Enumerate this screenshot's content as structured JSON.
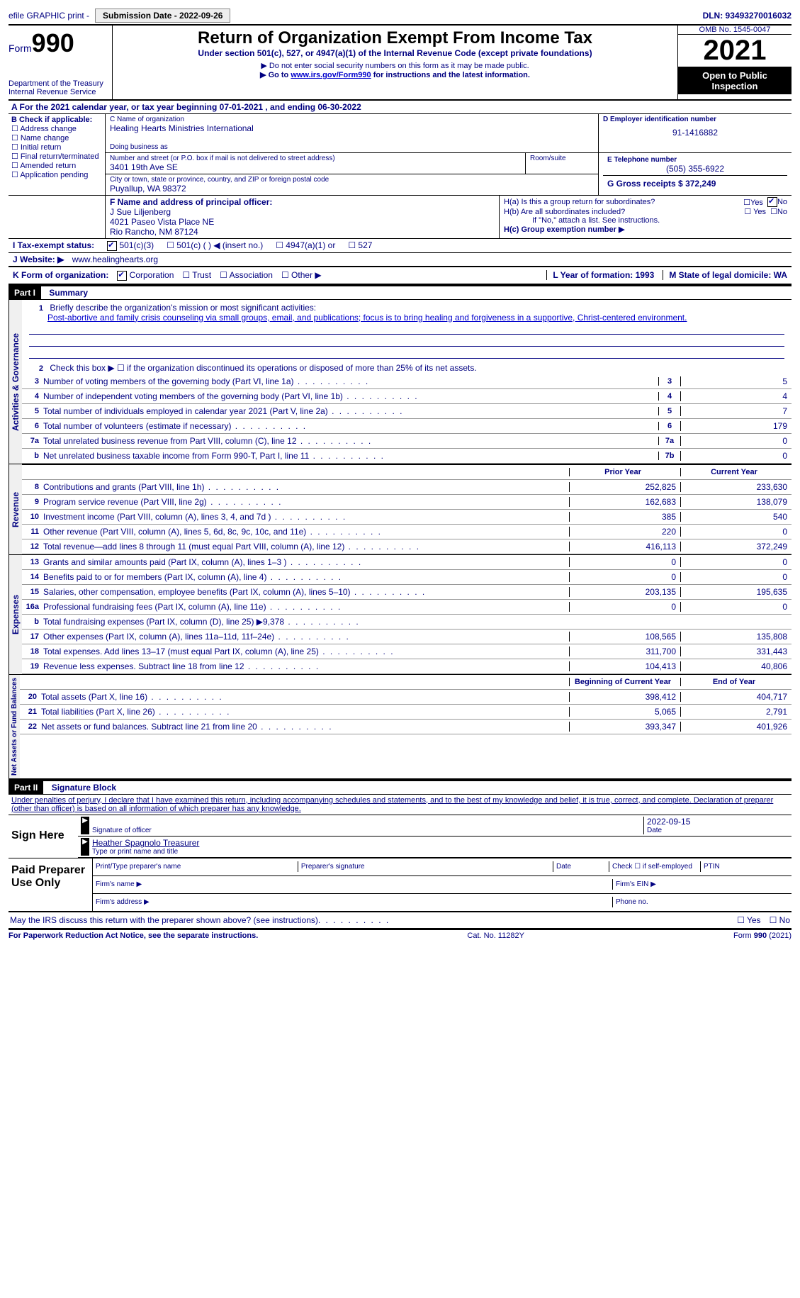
{
  "topbar": {
    "efile": "efile GRAPHIC print - ",
    "submission_label": "Submission Date - 2022-09-26",
    "dln_label": "DLN: 93493270016032"
  },
  "header": {
    "form_word": "Form",
    "form_num": "990",
    "dept": "Department of the Treasury",
    "irs": "Internal Revenue Service",
    "title": "Return of Organization Exempt From Income Tax",
    "subtitle": "Under section 501(c), 527, or 4947(a)(1) of the Internal Revenue Code (except private foundations)",
    "note1": "▶ Do not enter social security numbers on this form as it may be made public.",
    "note2_pre": "▶ Go to ",
    "note2_link": "www.irs.gov/Form990",
    "note2_post": " for instructions and the latest information.",
    "omb": "OMB No. 1545-0047",
    "year": "2021",
    "inspection": "Open to Public Inspection"
  },
  "row_a": "A For the 2021 calendar year, or tax year beginning 07-01-2021   , and ending 06-30-2022",
  "col_b": {
    "title": "B Check if applicable:",
    "opts": [
      "Address change",
      "Name change",
      "Initial return",
      "Final return/terminated",
      "Amended return",
      "Application pending"
    ]
  },
  "org": {
    "c_label": "C Name of organization",
    "name": "Healing Hearts Ministries International",
    "dba_label": "Doing business as",
    "addr_label": "Number and street (or P.O. box if mail is not delivered to street address)",
    "room_label": "Room/suite",
    "addr": "3401 19th Ave SE",
    "city_label": "City or town, state or province, country, and ZIP or foreign postal code",
    "city": "Puyallup, WA  98372",
    "d_label": "D Employer identification number",
    "ein": "91-1416882",
    "e_label": "E Telephone number",
    "phone": "(505) 355-6922",
    "g_label": "G Gross receipts $ ",
    "gross": "372,249"
  },
  "officer": {
    "f_label": "F Name and address of principal officer:",
    "name": "J Sue Liljenberg",
    "addr1": "4021 Paseo Vista Place NE",
    "addr2": "Rio Rancho, NM  87124"
  },
  "h": {
    "a": "H(a)  Is this a group return for subordinates?",
    "b": "H(b)  Are all subordinates included?",
    "note": "If \"No,\" attach a list. See instructions.",
    "c": "H(c)  Group exemption number ▶"
  },
  "status": {
    "i": "I  Tax-exempt status:",
    "o1": "501(c)(3)",
    "o2": "501(c) (  ) ◀ (insert no.)",
    "o3": "4947(a)(1) or",
    "o4": "527"
  },
  "website": {
    "j": "J  Website: ▶",
    "url": "www.healinghearts.org"
  },
  "k": {
    "label": "K Form of organization:",
    "o1": "Corporation",
    "o2": "Trust",
    "o3": "Association",
    "o4": "Other ▶",
    "l": "L Year of formation: 1993",
    "m": "M State of legal domicile: WA"
  },
  "part1": {
    "hdr": "Part I",
    "title": "Summary",
    "tab_ag": "Activities & Governance",
    "tab_rev": "Revenue",
    "tab_exp": "Expenses",
    "tab_na": "Net Assets or Fund Balances",
    "l1_lbl": "Briefly describe the organization's mission or most significant activities:",
    "l1_val": "Post-abortive and family crisis counseling via small groups, email, and publications; focus is to bring healing and forgiveness in a supportive, Christ-centered environment.",
    "l2": "Check this box ▶ ☐  if the organization discontinued its operations or disposed of more than 25% of its net assets.",
    "rows_gov": [
      {
        "n": "3",
        "d": "Number of voting members of the governing body (Part VI, line 1a)",
        "b": "3",
        "v": "5"
      },
      {
        "n": "4",
        "d": "Number of independent voting members of the governing body (Part VI, line 1b)",
        "b": "4",
        "v": "4"
      },
      {
        "n": "5",
        "d": "Total number of individuals employed in calendar year 2021 (Part V, line 2a)",
        "b": "5",
        "v": "7"
      },
      {
        "n": "6",
        "d": "Total number of volunteers (estimate if necessary)",
        "b": "6",
        "v": "179"
      },
      {
        "n": "7a",
        "d": "Total unrelated business revenue from Part VIII, column (C), line 12",
        "b": "7a",
        "v": "0"
      },
      {
        "n": "b",
        "d": "Net unrelated business taxable income from Form 990-T, Part I, line 11",
        "b": "7b",
        "v": "0"
      }
    ],
    "hdr_prior": "Prior Year",
    "hdr_curr": "Current Year",
    "rows_rev": [
      {
        "n": "8",
        "d": "Contributions and grants (Part VIII, line 1h)",
        "p": "252,825",
        "c": "233,630"
      },
      {
        "n": "9",
        "d": "Program service revenue (Part VIII, line 2g)",
        "p": "162,683",
        "c": "138,079"
      },
      {
        "n": "10",
        "d": "Investment income (Part VIII, column (A), lines 3, 4, and 7d )",
        "p": "385",
        "c": "540"
      },
      {
        "n": "11",
        "d": "Other revenue (Part VIII, column (A), lines 5, 6d, 8c, 9c, 10c, and 11e)",
        "p": "220",
        "c": "0"
      },
      {
        "n": "12",
        "d": "Total revenue—add lines 8 through 11 (must equal Part VIII, column (A), line 12)",
        "p": "416,113",
        "c": "372,249"
      }
    ],
    "rows_exp": [
      {
        "n": "13",
        "d": "Grants and similar amounts paid (Part IX, column (A), lines 1–3 )",
        "p": "0",
        "c": "0"
      },
      {
        "n": "14",
        "d": "Benefits paid to or for members (Part IX, column (A), line 4)",
        "p": "0",
        "c": "0"
      },
      {
        "n": "15",
        "d": "Salaries, other compensation, employee benefits (Part IX, column (A), lines 5–10)",
        "p": "203,135",
        "c": "195,635"
      },
      {
        "n": "16a",
        "d": "Professional fundraising fees (Part IX, column (A), line 11e)",
        "p": "0",
        "c": "0"
      },
      {
        "n": "b",
        "d": "Total fundraising expenses (Part IX, column (D), line 25) ▶9,378",
        "p": "",
        "c": "",
        "shade": true
      },
      {
        "n": "17",
        "d": "Other expenses (Part IX, column (A), lines 11a–11d, 11f–24e)",
        "p": "108,565",
        "c": "135,808"
      },
      {
        "n": "18",
        "d": "Total expenses. Add lines 13–17 (must equal Part IX, column (A), line 25)",
        "p": "311,700",
        "c": "331,443"
      },
      {
        "n": "19",
        "d": "Revenue less expenses. Subtract line 18 from line 12",
        "p": "104,413",
        "c": "40,806"
      }
    ],
    "hdr_beg": "Beginning of Current Year",
    "hdr_end": "End of Year",
    "rows_na": [
      {
        "n": "20",
        "d": "Total assets (Part X, line 16)",
        "p": "398,412",
        "c": "404,717"
      },
      {
        "n": "21",
        "d": "Total liabilities (Part X, line 26)",
        "p": "5,065",
        "c": "2,791"
      },
      {
        "n": "22",
        "d": "Net assets or fund balances. Subtract line 21 from line 20",
        "p": "393,347",
        "c": "401,926"
      }
    ]
  },
  "part2": {
    "hdr": "Part II",
    "title": "Signature Block",
    "perjury": "Under penalties of perjury, I declare that I have examined this return, including accompanying schedules and statements, and to the best of my knowledge and belief, it is true, correct, and complete. Declaration of preparer (other than officer) is based on all information of which preparer has any knowledge.",
    "sign_here": "Sign Here",
    "sig_of_officer": "Signature of officer",
    "date": "2022-09-15",
    "date_lbl": "Date",
    "typed": "Heather Spagnolo  Treasurer",
    "typed_lbl": "Type or print name and title",
    "paid": "Paid Preparer Use Only",
    "p_name": "Print/Type preparer's name",
    "p_sig": "Preparer's signature",
    "p_date": "Date",
    "p_check": "Check ☐ if self-employed",
    "ptin": "PTIN",
    "firm_name": "Firm's name   ▶",
    "firm_ein": "Firm's EIN ▶",
    "firm_addr": "Firm's address ▶",
    "phone": "Phone no.",
    "discuss": "May the IRS discuss this return with the preparer shown above? (see instructions)",
    "yes": "Yes",
    "no": "No"
  },
  "footer": {
    "pra": "For Paperwork Reduction Act Notice, see the separate instructions.",
    "cat": "Cat. No. 11282Y",
    "form": "Form 990 (2021)"
  }
}
